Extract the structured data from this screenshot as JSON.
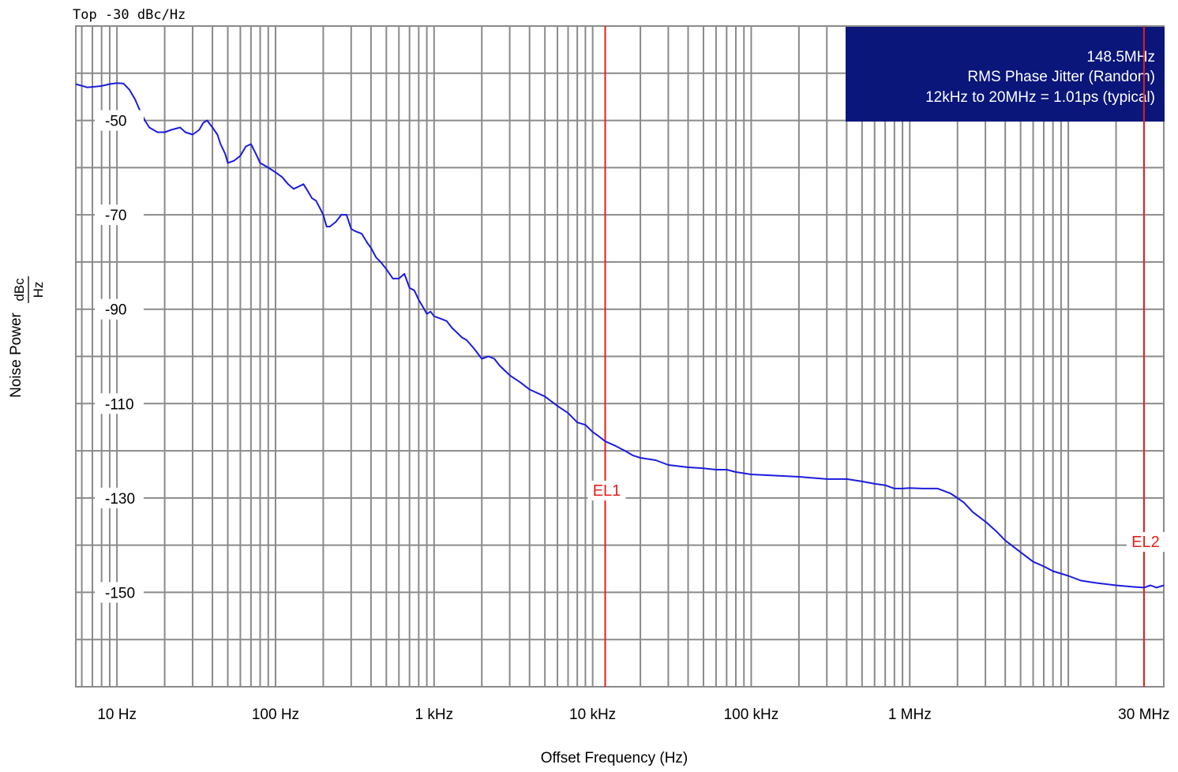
{
  "chart_data": {
    "type": "line",
    "title": "",
    "reference_level": "Top -30 dBc/Hz",
    "xlabel": "Offset Frequency (Hz)",
    "ylabel": "Noise Power",
    "ylabel_unit_numerator": "dBc",
    "ylabel_unit_denominator": "Hz",
    "x_scale": "log",
    "xlim": [
      5.5,
      40000000
    ],
    "ylim": [
      -170,
      -30
    ],
    "x_tick_labels": [
      {
        "value": 10,
        "label": "10 Hz"
      },
      {
        "value": 100,
        "label": "100 Hz"
      },
      {
        "value": 1000,
        "label": "1 kHz"
      },
      {
        "value": 10000,
        "label": "10 kHz"
      },
      {
        "value": 100000,
        "label": "100 kHz"
      },
      {
        "value": 1000000,
        "label": "1 MHz"
      },
      {
        "value": 30000000,
        "label": "30 MHz"
      }
    ],
    "y_tick_labels": [
      {
        "value": -50,
        "label": "-50"
      },
      {
        "value": -70,
        "label": "-70"
      },
      {
        "value": -90,
        "label": "-90"
      },
      {
        "value": -110,
        "label": "-110"
      },
      {
        "value": -130,
        "label": "-130"
      },
      {
        "value": -150,
        "label": "-150"
      }
    ],
    "grid": true,
    "annotation_box": {
      "lines": [
        "148.5MHz",
        "RMS Phase Jitter (Random)",
        "12kHz to 20MHz = 1.01ps (typical)"
      ],
      "position": "top-right",
      "background": "#0a167a",
      "text_color": "#ffffff"
    },
    "markers": [
      {
        "label": "EL1",
        "x": 12000
      },
      {
        "label": "EL2",
        "x": 30000000
      }
    ],
    "colors": {
      "trace": "#1c1cdc",
      "grid": "#8a8a8a",
      "marker": "#e3201b"
    },
    "series": [
      {
        "values": [
          [
            5.5,
            -42.3
          ],
          [
            6.5,
            -43.0
          ],
          [
            8,
            -42.7
          ],
          [
            9,
            -42.3
          ],
          [
            10,
            -42.1
          ],
          [
            11,
            -42.2
          ],
          [
            12,
            -43.5
          ],
          [
            13,
            -45.5
          ],
          [
            14,
            -48
          ],
          [
            15,
            -50
          ],
          [
            16,
            -51.5
          ],
          [
            18,
            -52.5
          ],
          [
            20,
            -52.5
          ],
          [
            22,
            -52.0
          ],
          [
            25,
            -51.5
          ],
          [
            27,
            -52.5
          ],
          [
            30,
            -53
          ],
          [
            33,
            -52
          ],
          [
            35,
            -50.5
          ],
          [
            37,
            -50
          ],
          [
            40,
            -51.5
          ],
          [
            43,
            -53
          ],
          [
            45,
            -55
          ],
          [
            48,
            -57
          ],
          [
            50,
            -59
          ],
          [
            55,
            -58.5
          ],
          [
            60,
            -57.5
          ],
          [
            65,
            -55.5
          ],
          [
            70,
            -55
          ],
          [
            75,
            -57
          ],
          [
            80,
            -59
          ],
          [
            90,
            -60
          ],
          [
            100,
            -61
          ],
          [
            110,
            -62
          ],
          [
            120,
            -63.5
          ],
          [
            130,
            -64.5
          ],
          [
            140,
            -64
          ],
          [
            150,
            -63.5
          ],
          [
            160,
            -65
          ],
          [
            170,
            -66.5
          ],
          [
            180,
            -67
          ],
          [
            190,
            -68.5
          ],
          [
            200,
            -70
          ],
          [
            210,
            -72.5
          ],
          [
            220,
            -72.5
          ],
          [
            240,
            -71.5
          ],
          [
            260,
            -70
          ],
          [
            280,
            -70
          ],
          [
            300,
            -73
          ],
          [
            320,
            -73.5
          ],
          [
            350,
            -74
          ],
          [
            380,
            -76
          ],
          [
            400,
            -77
          ],
          [
            430,
            -79
          ],
          [
            460,
            -80
          ],
          [
            500,
            -81.5
          ],
          [
            550,
            -83.5
          ],
          [
            600,
            -83.5
          ],
          [
            650,
            -82.5
          ],
          [
            700,
            -85.5
          ],
          [
            750,
            -86
          ],
          [
            800,
            -88
          ],
          [
            850,
            -89.5
          ],
          [
            900,
            -91
          ],
          [
            950,
            -90.5
          ],
          [
            1000,
            -91.5
          ],
          [
            1100,
            -92
          ],
          [
            1200,
            -92.5
          ],
          [
            1300,
            -94
          ],
          [
            1400,
            -95
          ],
          [
            1500,
            -96
          ],
          [
            1600,
            -96.5
          ],
          [
            1700,
            -97.5
          ],
          [
            1800,
            -98.5
          ],
          [
            2000,
            -100.5
          ],
          [
            2200,
            -100
          ],
          [
            2400,
            -100.5
          ],
          [
            2600,
            -102
          ],
          [
            3000,
            -104
          ],
          [
            3500,
            -105.5
          ],
          [
            4000,
            -107
          ],
          [
            5000,
            -108.5
          ],
          [
            6000,
            -110.5
          ],
          [
            7000,
            -112
          ],
          [
            8000,
            -114
          ],
          [
            9000,
            -114.5
          ],
          [
            10000,
            -116
          ],
          [
            11000,
            -117
          ],
          [
            12000,
            -118
          ],
          [
            14000,
            -119
          ],
          [
            16000,
            -120
          ],
          [
            18000,
            -121
          ],
          [
            20000,
            -121.5
          ],
          [
            25000,
            -122
          ],
          [
            30000,
            -123
          ],
          [
            40000,
            -123.5
          ],
          [
            50000,
            -123.7
          ],
          [
            60000,
            -124
          ],
          [
            70000,
            -124
          ],
          [
            80000,
            -124.5
          ],
          [
            100000,
            -125
          ],
          [
            150000,
            -125.3
          ],
          [
            200000,
            -125.5
          ],
          [
            300000,
            -126
          ],
          [
            400000,
            -126
          ],
          [
            500000,
            -126.5
          ],
          [
            600000,
            -127
          ],
          [
            700000,
            -127.3
          ],
          [
            800000,
            -128
          ],
          [
            900000,
            -128
          ],
          [
            1000000,
            -127.9
          ],
          [
            1200000,
            -128
          ],
          [
            1500000,
            -128
          ],
          [
            1800000,
            -129
          ],
          [
            2000000,
            -130
          ],
          [
            2200000,
            -131
          ],
          [
            2500000,
            -133
          ],
          [
            3000000,
            -135
          ],
          [
            3500000,
            -137
          ],
          [
            4000000,
            -139
          ],
          [
            5000000,
            -141.5
          ],
          [
            6000000,
            -143.5
          ],
          [
            7000000,
            -144.5
          ],
          [
            8000000,
            -145.5
          ],
          [
            10000000,
            -146.5
          ],
          [
            12000000,
            -147.5
          ],
          [
            15000000,
            -148
          ],
          [
            20000000,
            -148.5
          ],
          [
            25000000,
            -148.8
          ],
          [
            30000000,
            -149
          ],
          [
            33000000,
            -148.5
          ],
          [
            36000000,
            -149
          ],
          [
            40000000,
            -148.5
          ]
        ]
      }
    ]
  }
}
